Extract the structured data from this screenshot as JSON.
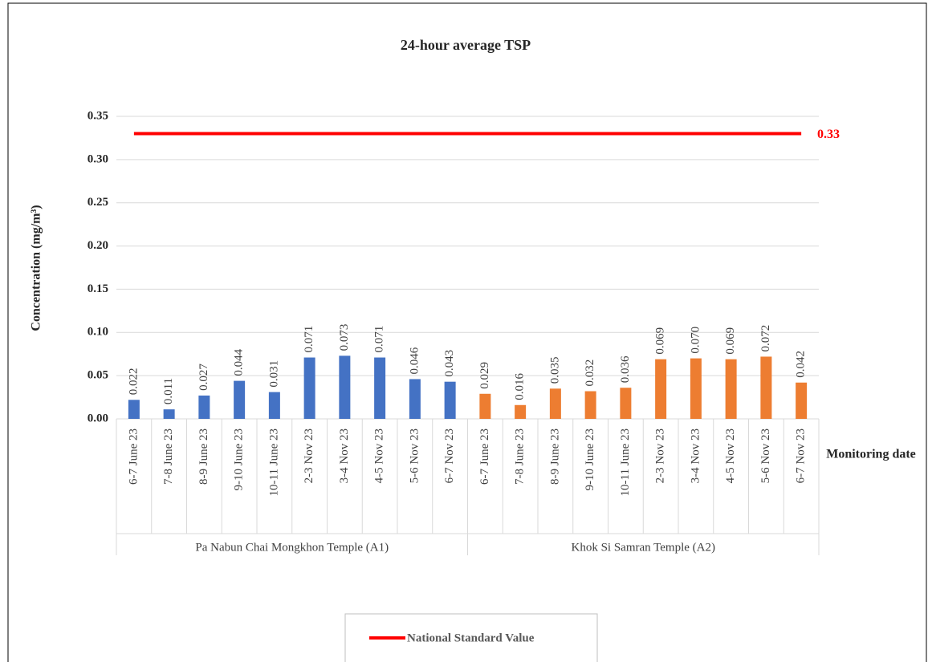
{
  "chart_data": {
    "type": "bar",
    "title": "24-hour average TSP",
    "y_label": "Concentration (mg/m³)",
    "x_label": "Monitoring date",
    "ylim": [
      0,
      0.35
    ],
    "yticks": [
      {
        "value": 0,
        "label": "0.00"
      },
      {
        "value": 0.05,
        "label": "0.05"
      },
      {
        "value": 0.1,
        "label": "0.10"
      },
      {
        "value": 0.15,
        "label": "0.15"
      },
      {
        "value": 0.2,
        "label": "0.20"
      },
      {
        "value": 0.25,
        "label": "0.25"
      },
      {
        "value": 0.3,
        "label": "0.30"
      },
      {
        "value": 0.35,
        "label": "0.35"
      }
    ],
    "grid": true,
    "series": [
      {
        "name": "Pa Nabun Chai Mongkhon Temple (A1)",
        "color": "#4472c4",
        "categories": [
          "6-7 June 23",
          "7-8 June 23",
          "8-9 June 23",
          "9-10 June 23",
          "10-11 June 23",
          "2-3 Nov 23",
          "3-4 Nov 23",
          "4-5 Nov 23",
          "5-6 Nov 23",
          "6-7 Nov 23"
        ],
        "values": [
          0.022,
          0.011,
          0.027,
          0.044,
          0.031,
          0.071,
          0.073,
          0.071,
          0.046,
          0.043
        ],
        "value_labels": [
          "0.022",
          "0.011",
          "0.027",
          "0.044",
          "0.031",
          "0.071",
          "0.073",
          "0.071",
          "0.046",
          "0.043"
        ]
      },
      {
        "name": "Khok Si Samran Temple (A2)",
        "color": "#ed7d31",
        "categories": [
          "6-7 June 23",
          "7-8 June 23",
          "8-9 June 23",
          "9-10 June 23",
          "10-11 June 23",
          "2-3 Nov 23",
          "3-4 Nov 23",
          "4-5 Nov 23",
          "5-6 Nov 23",
          "6-7 Nov 23"
        ],
        "values": [
          0.029,
          0.016,
          0.035,
          0.032,
          0.036,
          0.069,
          0.07,
          0.069,
          0.072,
          0.042
        ],
        "value_labels": [
          "0.029",
          "0.016",
          "0.035",
          "0.032",
          "0.036",
          "0.069",
          "0.070",
          "0.069",
          "0.072",
          "0.042"
        ]
      }
    ],
    "reference_line": {
      "name": "National Standard Value",
      "value": 0.33,
      "color": "#ff0000"
    }
  }
}
